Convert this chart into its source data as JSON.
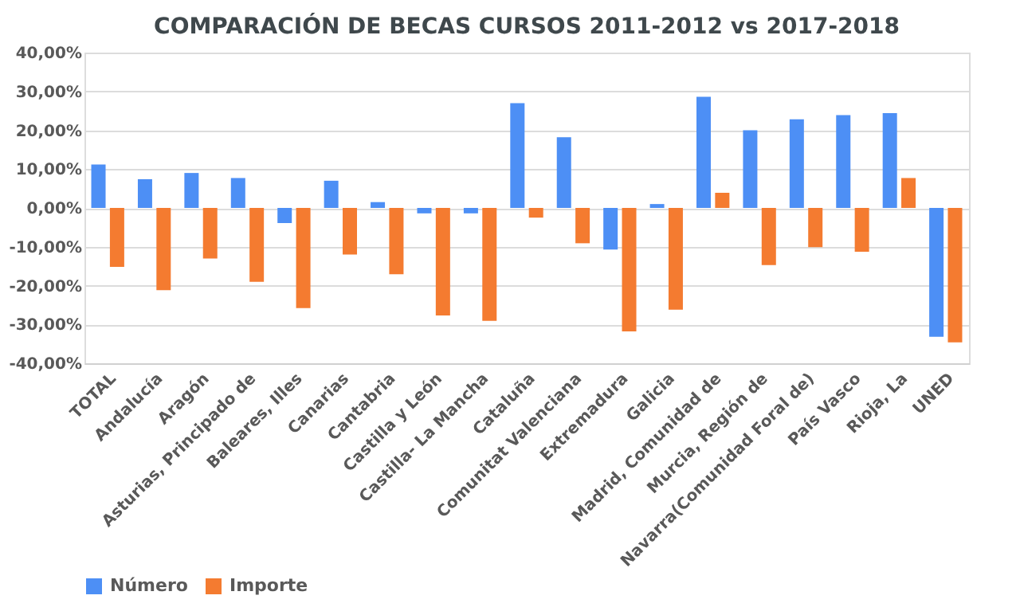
{
  "chart_data": {
    "type": "bar",
    "title": "COMPARACIÓN DE BECAS CURSOS 2011-2012 vs 2017-2018",
    "categories": [
      "TOTAL",
      "Andalucía",
      "Aragón",
      "Asturias, Principado de",
      "Baleares, Illes",
      "Canarias",
      "Cantabria",
      "Castilla y León",
      "Castilla- La Mancha",
      "Cataluña",
      "Comunitat Valenciana",
      "Extremadura",
      "Galicia",
      "Madrid, Comunidad de",
      "Murcia, Región de",
      "Navarra(Comunidad Foral de)",
      "País Vasco",
      "Rioja, La",
      "UNED"
    ],
    "series": [
      {
        "name": "Número",
        "color": "#4d8ff5",
        "values": [
          11.2,
          7.4,
          9.0,
          7.7,
          -3.9,
          7.0,
          1.5,
          -1.4,
          -1.4,
          27.0,
          18.2,
          -10.7,
          1.0,
          28.6,
          20.0,
          22.8,
          23.9,
          24.4,
          -33.2
        ]
      },
      {
        "name": "Importe",
        "color": "#f47b30",
        "values": [
          -15.2,
          -21.2,
          -13.0,
          -19.0,
          -25.8,
          -12.0,
          -17.1,
          -27.7,
          -29.1,
          -2.5,
          -9.1,
          -31.8,
          -26.2,
          3.9,
          -14.7,
          -10.1,
          -11.3,
          7.7,
          -34.6
        ]
      }
    ],
    "ylim": [
      -40,
      40
    ],
    "yticks": [
      {
        "value": -40,
        "label": "-40,00%"
      },
      {
        "value": -30,
        "label": "-30,00%"
      },
      {
        "value": -20,
        "label": "-20,00%"
      },
      {
        "value": -10,
        "label": "-10,00%"
      },
      {
        "value": 0,
        "label": "0,00%"
      },
      {
        "value": 10,
        "label": "10,00%"
      },
      {
        "value": 20,
        "label": "20,00%"
      },
      {
        "value": 30,
        "label": "30,00%"
      },
      {
        "value": 40,
        "label": "40,00%"
      }
    ],
    "grid": "y",
    "legend": "bottom"
  }
}
